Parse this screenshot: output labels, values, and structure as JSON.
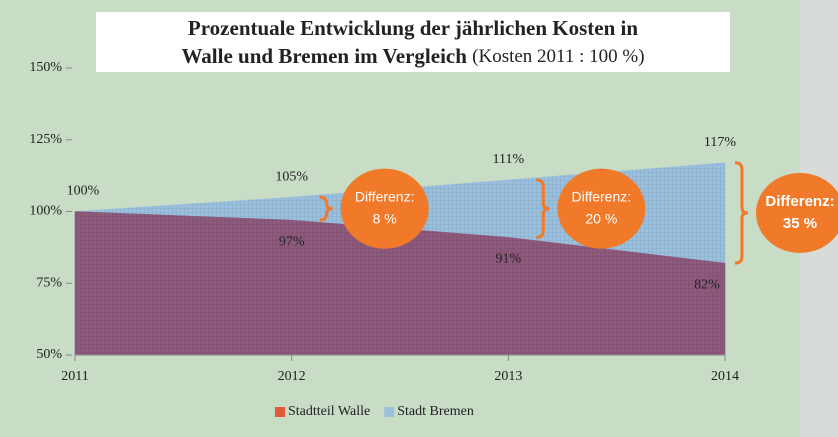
{
  "chart_data": {
    "type": "area",
    "title": [
      "Prozentuale Entwicklung der jährlichen Kosten in",
      "Walle und Bremen im Vergleich"
    ],
    "subtitle": "(Kosten 2011 : 100 %)",
    "categories": [
      "2011",
      "2012",
      "2013",
      "2014"
    ],
    "series": [
      {
        "name": "Stadt Bremen",
        "color": "#9cc0dc",
        "values": [
          100,
          105,
          111,
          117
        ],
        "value_labels": [
          "100%",
          "105%",
          "111%",
          "117%"
        ]
      },
      {
        "name": "Stadtteil Walle",
        "color": "#8e5a7c",
        "values": [
          100,
          97,
          91,
          82
        ],
        "value_labels": [
          null,
          "97%",
          "91%",
          "82%"
        ]
      }
    ],
    "ylim": [
      50,
      150
    ],
    "yticks": [
      {
        "value": 50,
        "label": "50%"
      },
      {
        "value": 75,
        "label": "75%"
      },
      {
        "value": 100,
        "label": "100%"
      },
      {
        "value": 125,
        "label": "125%"
      },
      {
        "value": 150,
        "label": "150%"
      }
    ],
    "annotations": [
      {
        "title": "Differenz:",
        "text": "8 %"
      },
      {
        "title": "Differenz:",
        "text": "20 %"
      },
      {
        "title": "Differenz:",
        "text": "35 %"
      }
    ],
    "annotation_color": "#f07a2a",
    "legend": "bottom"
  }
}
